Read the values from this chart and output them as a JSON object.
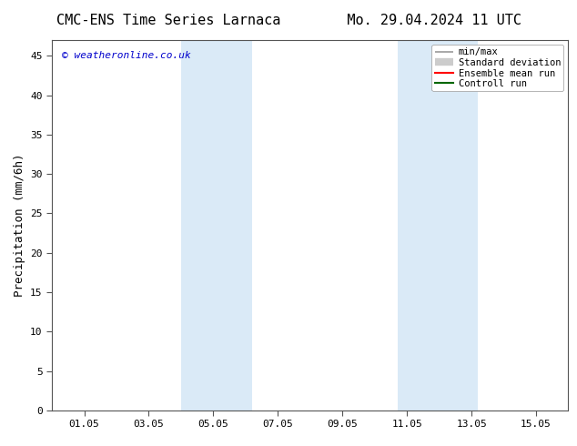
{
  "title_left": "CMC-ENS Time Series Larnaca",
  "title_right": "Mo. 29.04.2024 11 UTC",
  "ylabel": "Precipitation (mm/6h)",
  "xlabel": "",
  "xlim": [
    0,
    16
  ],
  "ylim": [
    0,
    47
  ],
  "yticks": [
    0,
    5,
    10,
    15,
    20,
    25,
    30,
    35,
    40,
    45
  ],
  "xtick_labels": [
    "01.05",
    "03.05",
    "05.05",
    "07.05",
    "09.05",
    "11.05",
    "13.05",
    "15.05"
  ],
  "xtick_positions": [
    1,
    3,
    5,
    7,
    9,
    11,
    13,
    15
  ],
  "watermark": "© weatheronline.co.uk",
  "watermark_color": "#0000cc",
  "bg_color": "#ffffff",
  "shaded_regions": [
    {
      "xmin": 4.0,
      "xmax": 6.2
    },
    {
      "xmin": 10.7,
      "xmax": 13.2
    }
  ],
  "shaded_color": "#daeaf7",
  "legend_items": [
    {
      "label": "min/max",
      "color": "#999999",
      "lw": 1.2
    },
    {
      "label": "Standard deviation",
      "color": "#cccccc",
      "lw": 5
    },
    {
      "label": "Ensemble mean run",
      "color": "#ff0000",
      "lw": 1.5
    },
    {
      "label": "Controll run",
      "color": "#008000",
      "lw": 1.5
    }
  ],
  "title_fontsize": 11,
  "axis_label_fontsize": 9,
  "tick_fontsize": 8,
  "legend_fontsize": 7.5,
  "watermark_fontsize": 8
}
